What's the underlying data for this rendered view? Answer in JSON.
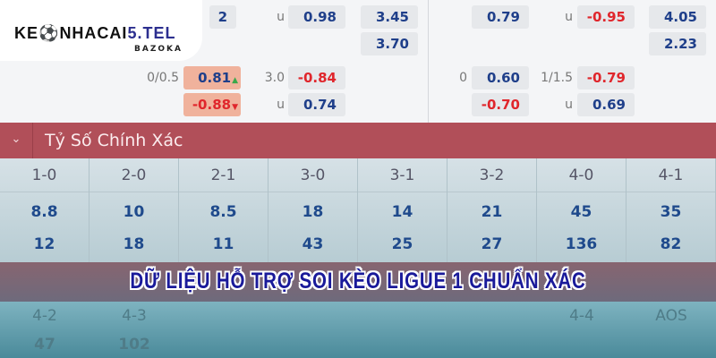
{
  "odds_top": {
    "row1": {
      "left_partial": "2",
      "left_ou_label": "u",
      "left_ou": "0.98",
      "left_x": "3.45",
      "right_ah": "0.79",
      "right_ou_label": "u",
      "right_ou": "-0.95",
      "right_x": "4.05"
    },
    "row2": {
      "left_x": "3.70",
      "right_x": "2.23"
    },
    "row3": {
      "left_hcp": "0/0.5",
      "left_ah": "0.81",
      "left_ou_line": "3.0",
      "left_ou": "-0.84",
      "right_hcp": "0",
      "right_ah": "0.60",
      "right_ou_line": "1/1.5",
      "right_ou": "-0.79"
    },
    "row4": {
      "left_ah": "-0.88",
      "left_ou_label": "u",
      "left_ou": "0.74",
      "right_ah": "-0.70",
      "right_ou_label": "u",
      "right_ou": "0.69"
    },
    "arrow_up": "▲",
    "arrow_down": "▼"
  },
  "logo": {
    "main_a": "KE",
    "main_b": "NHACAI",
    "main_c": "5.TEL",
    "sub": "BAZOKA"
  },
  "section": {
    "chevron": "⌄",
    "title": "Tỷ Số Chính Xác"
  },
  "scores": [
    {
      "score": "1-0",
      "home": "8.8",
      "away": "12"
    },
    {
      "score": "2-0",
      "home": "10",
      "away": "18"
    },
    {
      "score": "2-1",
      "home": "8.5",
      "away": "11"
    },
    {
      "score": "3-0",
      "home": "18",
      "away": "43"
    },
    {
      "score": "3-1",
      "home": "14",
      "away": "25"
    },
    {
      "score": "3-2",
      "home": "21",
      "away": "27"
    },
    {
      "score": "4-0",
      "home": "45",
      "away": "136"
    },
    {
      "score": "4-1",
      "home": "35",
      "away": "82"
    }
  ],
  "bottom_row": {
    "c1": "4-2",
    "c2": "4-3",
    "c7": "4-4",
    "c8": "AOS",
    "v1": "47",
    "v2": "102"
  },
  "banner": "DỮ LIỆU HỖ TRỢ SOI KÈO LIGUE 1 CHUẨN XÁC",
  "colors": {
    "section_bar": "#b14f59",
    "odds_blue": "#1f3f8a",
    "odds_red": "#e0262c",
    "highlight": "#f0b29c",
    "banner_text": "#1a1a9a"
  }
}
